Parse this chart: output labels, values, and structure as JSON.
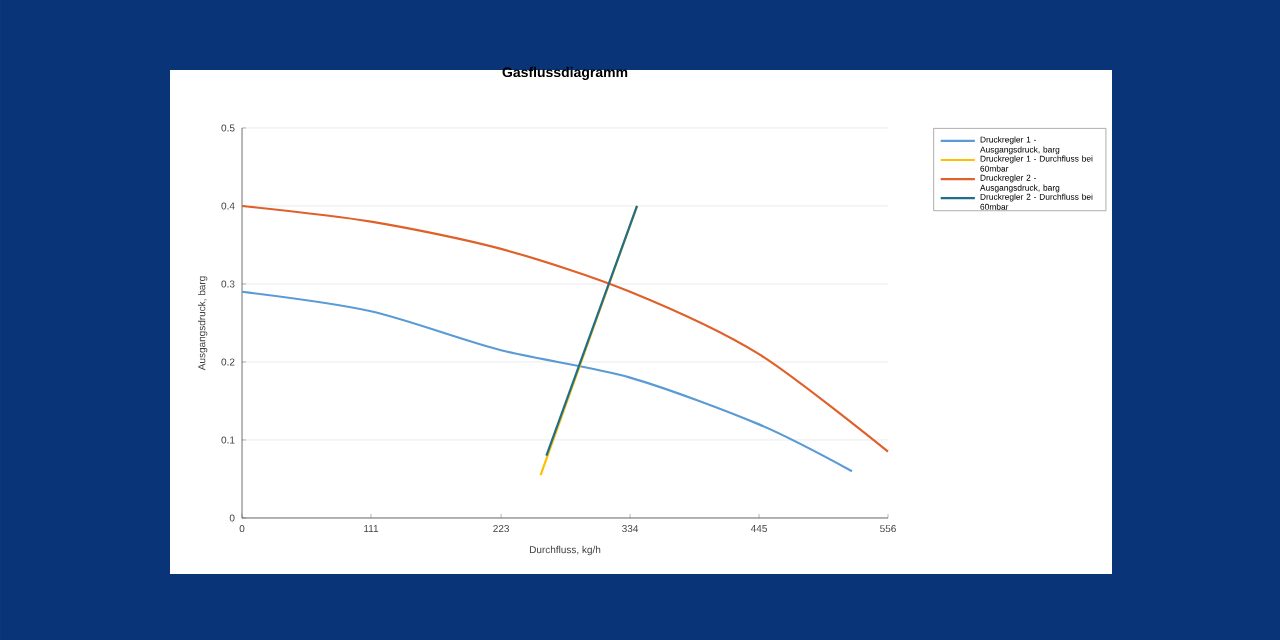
{
  "chart_data": {
    "type": "line",
    "title": "Gasflussdiagramm",
    "xlabel": "Durchfluss, kg/h",
    "ylabel": "Ausgangsdruck, barg",
    "xlim": [
      0,
      556
    ],
    "ylim": [
      0,
      0.5
    ],
    "xticks": [
      0,
      111,
      223,
      334,
      445,
      556
    ],
    "yticks": [
      0,
      0.1,
      0.2,
      0.3,
      0.4,
      0.5
    ],
    "grid": "y",
    "legend": "right",
    "marker": "none",
    "line_style": "solid",
    "series": [
      {
        "name": "Druckregler 1 - Ausgangsdruck, barg",
        "color": "#5b9bd5",
        "x": [
          0,
          111,
          223,
          334,
          445,
          525
        ],
        "values": [
          0.29,
          0.265,
          0.215,
          0.18,
          0.12,
          0.06
        ]
      },
      {
        "name": "Druckregler 1 - Durchfluss bei 60mbar",
        "color": "#ffc000",
        "x": [
          257,
          340
        ],
        "values": [
          0.055,
          0.4
        ]
      },
      {
        "name": "Druckregler 2 - Ausgangsdruck, barg",
        "color": "#e0602a",
        "x": [
          0,
          111,
          223,
          334,
          445,
          556
        ],
        "values": [
          0.4,
          0.38,
          0.345,
          0.29,
          0.21,
          0.085
        ]
      },
      {
        "name": "Druckregler 2 - Durchfluss bei 60mbar",
        "color": "#1f6e8c",
        "x": [
          262,
          340
        ],
        "values": [
          0.08,
          0.4
        ]
      }
    ]
  }
}
